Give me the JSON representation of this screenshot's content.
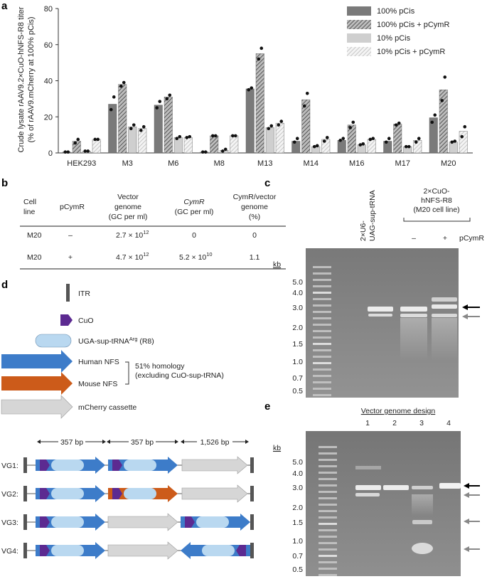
{
  "panel_labels": {
    "a": "a",
    "b": "b",
    "c": "c",
    "d": "d",
    "e": "e"
  },
  "chart_data": {
    "type": "bar",
    "ylabel_line1": "Crude lysate rAAV9.2×CuO-hNFS-R8 titer",
    "ylabel_line2": "(% of rAAV9.mCherry at 100% pCis)",
    "ylim": [
      0,
      80
    ],
    "yticks": [
      "0",
      "20",
      "40",
      "60",
      "80"
    ],
    "categories": [
      "HEK293",
      "M3",
      "M6",
      "M8",
      "M13",
      "M14",
      "M16",
      "M17",
      "M20"
    ],
    "series": [
      {
        "name": "100% pCis",
        "values": [
          0.5,
          27,
          26.5,
          0.5,
          35.5,
          6.5,
          7,
          6.5,
          19.5
        ],
        "points": [
          [
            0.5,
            0.5
          ],
          [
            24,
            31
          ],
          [
            25,
            28.5
          ],
          [
            0.5,
            0.5
          ],
          [
            35,
            36
          ],
          [
            6,
            8
          ],
          [
            7,
            8
          ],
          [
            6,
            8
          ],
          [
            17,
            21
          ]
        ]
      },
      {
        "name": "100% pCis + pCymR",
        "values": [
          6.5,
          38,
          31,
          9.5,
          55,
          29.5,
          15.5,
          16,
          35
        ],
        "points": [
          [
            5.5,
            7.5
          ],
          [
            37,
            39
          ],
          [
            30,
            32
          ],
          [
            9.5,
            9.5
          ],
          [
            52,
            58
          ],
          [
            26,
            33
          ],
          [
            14,
            17
          ],
          [
            15.5,
            16.5
          ],
          [
            29,
            42
          ]
        ]
      },
      {
        "name": "10% pCis",
        "values": [
          1,
          14.5,
          8.5,
          1.5,
          14,
          3.5,
          4.5,
          3.5,
          6
        ],
        "points": [
          [
            1,
            1
          ],
          [
            13.5,
            15.5
          ],
          [
            8,
            9
          ],
          [
            1,
            2
          ],
          [
            13.5,
            15
          ],
          [
            3.5,
            4
          ],
          [
            4.5,
            5
          ],
          [
            3.5,
            3.5
          ],
          [
            6,
            6.5
          ]
        ]
      },
      {
        "name": "10% pCis + pCymR",
        "values": [
          7.5,
          13.5,
          8.5,
          9.5,
          16.5,
          7.5,
          7.5,
          7,
          12
        ],
        "points": [
          [
            7.5,
            7.5
          ],
          [
            12.5,
            14.5
          ],
          [
            8.5,
            9
          ],
          [
            9.5,
            9.5
          ],
          [
            15.5,
            17.5
          ],
          [
            6.5,
            8.5
          ],
          [
            7.5,
            8
          ],
          [
            6,
            8
          ],
          [
            9,
            14.5
          ]
        ]
      }
    ]
  },
  "legend": [
    "100% pCis",
    "100% pCis + pCymR",
    "10% pCis",
    "10% pCis + pCymR"
  ],
  "table": {
    "headers": [
      [
        "Cell",
        "line"
      ],
      [
        "pCymR"
      ],
      [
        "Vector",
        "genome",
        "(GC per ml)"
      ],
      [
        "CymR",
        "(GC per ml)"
      ],
      [
        "CymR/vector",
        "genome",
        "(%)"
      ]
    ],
    "rows": [
      {
        "cell": "M20",
        "pcymr": "–",
        "vg_mant": "2.7 × 10",
        "vg_exp": "12",
        "cymr": "0",
        "pct": "0"
      },
      {
        "cell": "M20",
        "pcymr": "+",
        "vg_mant": "4.7 × 10",
        "vg_exp": "12",
        "cymr_mant": "5.2 × 10",
        "cymr_exp": "10",
        "pct": "1.1"
      }
    ]
  },
  "gel_c": {
    "lane1_label": [
      "2×U6-",
      "UAG-sup-tRNA"
    ],
    "group_label": [
      "2×CuO-",
      "hNFS-R8",
      "(M20 cell line)"
    ],
    "minus": "–",
    "plus": "+",
    "pcymr": "pCymR",
    "kb": "kb",
    "markers": [
      "5.0",
      "4.0",
      "3.0",
      "2.0",
      "1.5",
      "1.0",
      "0.7",
      "0.5"
    ]
  },
  "gel_e": {
    "title": "Vector genome design",
    "lanes": [
      "1",
      "2",
      "3",
      "4"
    ],
    "kb": "kb",
    "markers": [
      "5.0",
      "4.0",
      "3.0",
      "2.0",
      "1.5",
      "1.0",
      "0.7",
      "0.5"
    ]
  },
  "legend_d": {
    "itr": "ITR",
    "cuo": "CuO",
    "trna": "UGA-sup-tRNA",
    "trna_sup": "Arg",
    "trna_suffix": " (R8)",
    "human": "Human NFS",
    "mouse": "Mouse NFS",
    "homology1": "51% homology",
    "homology2": "(excluding CuO-sup-tRNA)",
    "mcherry": "mCherry cassette"
  },
  "vg_diagram": {
    "dist1": "357 bp",
    "dist2": "357 bp",
    "dist3": "1,526 bp",
    "rows": [
      "VG1:",
      "VG2:",
      "VG3:",
      "VG4:"
    ]
  },
  "colors": {
    "human": "#3d7cc9",
    "mouse": "#cc5b1a",
    "cuo": "#5c2a91",
    "trna": "#b9d8f0",
    "mcherry": "#d6d6d6",
    "bar_dark": "#7a7a7a",
    "bar_light": "#cfcfcf"
  }
}
